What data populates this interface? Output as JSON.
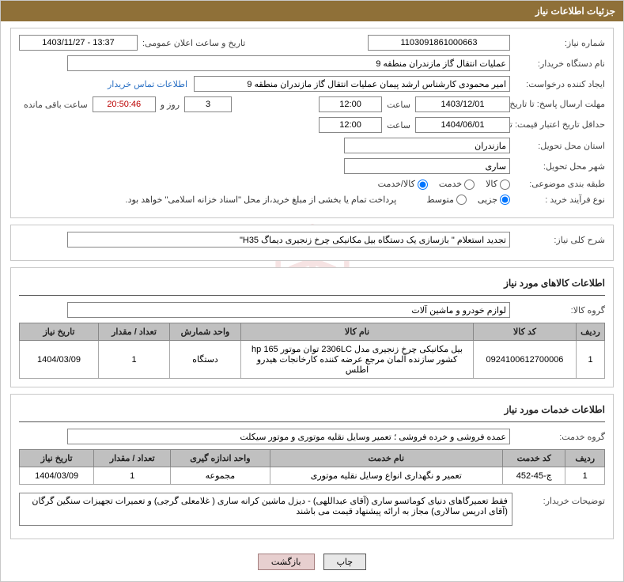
{
  "title_bar": "جزئیات اطلاعات نیاز",
  "fields": {
    "need_no_label": "شماره نیاز:",
    "need_no": "1103091861000663",
    "announce_label": "تاریخ و ساعت اعلان عمومی:",
    "announce_value": "1403/11/27 - 13:37",
    "buyer_org_label": "نام دستگاه خریدار:",
    "buyer_org": "عملیات انتقال گاز مازندران منطقه 9",
    "requester_label": "ایجاد کننده درخواست:",
    "requester": "امیر محمودی کارشناس ارشد پیمان عملیات انتقال گاز مازندران منطقه 9",
    "contact_link": "اطلاعات تماس خریدار",
    "deadline_label": "مهلت ارسال پاسخ: تا تاریخ:",
    "deadline_date": "1403/12/01",
    "time_label": "ساعت",
    "deadline_time": "12:00",
    "days_and": "روز و",
    "days_left": "3",
    "countdown": "20:50:46",
    "remain_label": "ساعت باقی مانده",
    "validity_label": "حداقل تاریخ اعتبار قیمت: تا تاریخ:",
    "validity_date": "1404/06/01",
    "validity_time": "12:00",
    "province_label": "استان محل تحویل:",
    "province": "مازندران",
    "city_label": "شهر محل تحویل:",
    "city": "ساری",
    "category_label": "طبقه بندی موضوعی:",
    "cat_goods": "کالا",
    "cat_service": "خدمت",
    "cat_both": "کالا/خدمت",
    "process_label": "نوع فرآیند خرید :",
    "proc_partial": "جزیی",
    "proc_medium": "متوسط",
    "proc_note": "پرداخت تمام یا بخشی از مبلغ خرید،از محل \"اسناد خزانه اسلامی\" خواهد بود.",
    "desc_label": "شرح کلی نیاز:",
    "desc_value": "تجدید استعلام \" بازسازی یک دستگاه بیل مکانیکی چرخ زنجیری دیماگ H35\""
  },
  "goods_section": {
    "heading": "اطلاعات کالاهای مورد نیاز",
    "group_label": "گروه کالا:",
    "group_value": "لوازم خودرو و ماشین آلات",
    "columns": [
      "ردیف",
      "کد کالا",
      "نام کالا",
      "واحد شمارش",
      "تعداد / مقدار",
      "تاریخ نیاز"
    ],
    "rows": [
      [
        "1",
        "0924100612700006",
        "بیل مکانیکی چرخ زنجیری مدل 2306LC توان موتور hp 165 کشور سازنده آلمان مرجع عرضه کننده کارخانجات هیدرو اطلس",
        "دستگاه",
        "1",
        "1404/03/09"
      ]
    ],
    "col_widths": [
      "36px",
      "130px",
      "auto",
      "90px",
      "90px",
      "100px"
    ]
  },
  "services_section": {
    "heading": "اطلاعات خدمات مورد نیاز",
    "group_label": "گروه خدمت:",
    "group_value": "عمده فروشی و خرده فروشی ؛ تعمیر وسایل نقلیه موتوری و موتور سیکلت",
    "columns": [
      "ردیف",
      "کد خدمت",
      "نام خدمت",
      "واحد اندازه گیری",
      "تعداد / مقدار",
      "تاریخ نیاز"
    ],
    "rows": [
      [
        "1",
        "چ-45-452",
        "تعمیر و نگهداری انواع وسایل نقلیه موتوری",
        "مجموعه",
        "1",
        "1404/03/09"
      ]
    ]
  },
  "buyer_notes": {
    "label": "توضیحات خریدار:",
    "value": "فقط تعمیرگاهای دنیای کوماتسو ساری (آقای عبداللهی) - دیزل ماشین کرانه ساری ( غلامعلی گرجی) و تعمیرات تجهیزات سنگین گرگان (آقای ادریس سالاری) مجاز به ارائه پیشنهاد قیمت می باشند"
  },
  "buttons": {
    "print": "چاپ",
    "back": "بازگشت"
  },
  "watermark": "AriaTender.net",
  "style": {
    "brown": "#8f7038",
    "grid_header_bg": "#c0c0c0",
    "border": "#888888"
  }
}
